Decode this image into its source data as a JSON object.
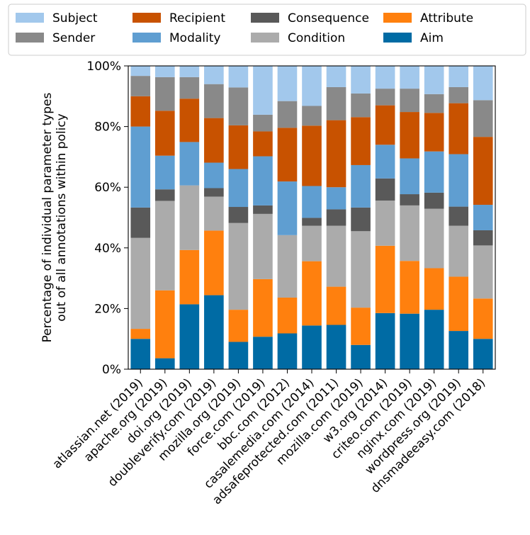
{
  "chart_data": {
    "type": "bar",
    "stacked": true,
    "title": "",
    "xlabel": "",
    "ylabel": "Percentage of individual parameter types\nout of all annotations within policy",
    "ylim": [
      0,
      100
    ],
    "yticks": [
      0,
      20,
      40,
      60,
      80,
      100
    ],
    "ytick_labels": [
      "0%",
      "20%",
      "40%",
      "60%",
      "80%",
      "100%"
    ],
    "legend_position": "top",
    "legend_order": [
      "Subject",
      "Sender",
      "Recipient",
      "Modality",
      "Consequence",
      "Condition",
      "Attribute",
      "Aim"
    ],
    "categories": [
      "atlassian.net (2019)",
      "apache.org (2019)",
      "doi.org (2019)",
      "doubleverify.com (2019)",
      "mozilla.org (2019)",
      "force.com (2019)",
      "bbc.com (2012)",
      "casalemedia.com (2014)",
      "adsafeprotected.com (2011)",
      "mozilla.com (2019)",
      "w3.org (2014)",
      "criteo.com (2019)",
      "nginx.com (2019)",
      "wordpress.org (2019)",
      "dnsmadeeasy.com (2018)"
    ],
    "series": [
      {
        "name": "Aim",
        "color": "#006BA4",
        "values": [
          10,
          3.6,
          21.4,
          24.4,
          9,
          10.7,
          11.8,
          14.4,
          14.6,
          8,
          18.5,
          18.3,
          19.6,
          12.6,
          10
        ]
      },
      {
        "name": "Attribute",
        "color": "#FF800E",
        "values": [
          3.3,
          22.4,
          17.9,
          21.3,
          10.6,
          19,
          11.8,
          21.2,
          12.6,
          12.3,
          22.2,
          17.4,
          13.7,
          17.9,
          13.3
        ]
      },
      {
        "name": "Condition",
        "color": "#ABABAB",
        "values": [
          30,
          29.5,
          21.3,
          11.2,
          28.6,
          21.5,
          20.6,
          11.7,
          20.1,
          25.2,
          14.9,
          18.3,
          19.6,
          16.8,
          17.5
        ]
      },
      {
        "name": "Consequence",
        "color": "#595959",
        "values": [
          10,
          3.8,
          0,
          2.8,
          5.3,
          2.8,
          0,
          2.6,
          5.4,
          7.8,
          7.3,
          3.7,
          5.3,
          6.3,
          5
        ]
      },
      {
        "name": "Modality",
        "color": "#5F9ED1",
        "values": [
          26.7,
          11.1,
          14.3,
          8.4,
          12.5,
          16.2,
          17.7,
          10.5,
          7.3,
          14,
          11.1,
          11.8,
          13.6,
          17.3,
          8.4
        ]
      },
      {
        "name": "Recipient",
        "color": "#C85200",
        "values": [
          10,
          14.8,
          14.3,
          14.7,
          14.4,
          8.2,
          17.7,
          19.9,
          22.1,
          15.8,
          13,
          15.3,
          12.7,
          16.8,
          22.4
        ]
      },
      {
        "name": "Sender",
        "color": "#898989",
        "values": [
          6.7,
          11.1,
          7.1,
          11.2,
          12.5,
          5.5,
          8.8,
          6.5,
          10.9,
          7.8,
          5.5,
          7.7,
          6.2,
          5.3,
          12.1
        ]
      },
      {
        "name": "Subject",
        "color": "#A2C8EC",
        "values": [
          3.3,
          3.7,
          3.7,
          6,
          7.1,
          16.1,
          11.6,
          13.2,
          7,
          9.1,
          7.5,
          7.5,
          9.3,
          7,
          11.3
        ]
      }
    ]
  }
}
